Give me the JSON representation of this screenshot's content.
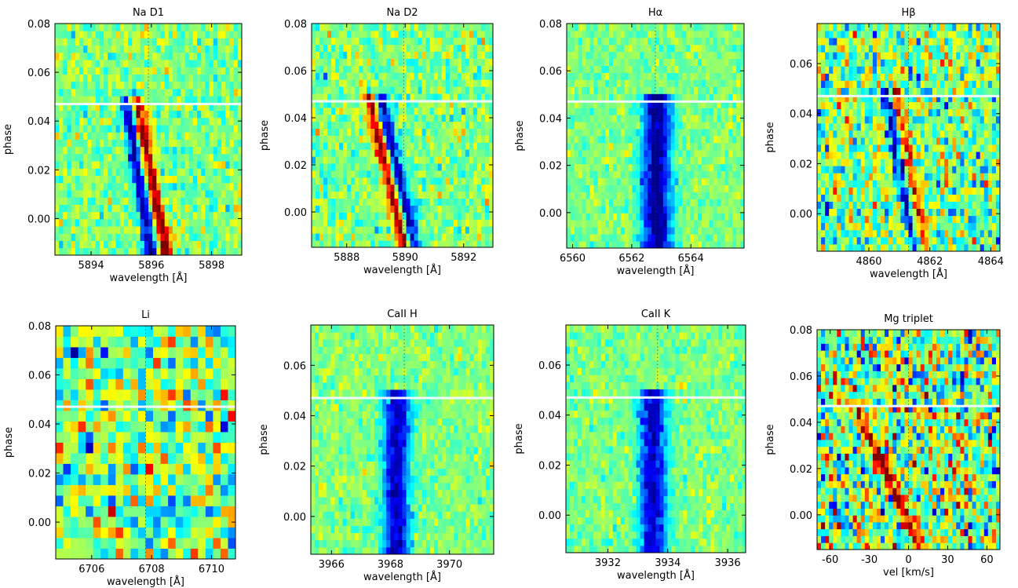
{
  "colormap": [
    "#00008f",
    "#0000ff",
    "#0080ff",
    "#00ffff",
    "#80ff80",
    "#ffff00",
    "#ff8000",
    "#ff0000",
    "#800000"
  ],
  "transit_line_color": "#f0f8ff",
  "chart_data": [
    {
      "type": "heatmap",
      "title": "Na D1",
      "xlabel": "wavelength [Å]",
      "ylabel": "phase",
      "xlim": [
        5892.8,
        5899.0
      ],
      "ylim": [
        -0.015,
        0.08
      ],
      "xticks": [
        5894,
        5896,
        5898
      ],
      "xticklabels": [
        "5894",
        "5896",
        "5898"
      ],
      "yticks": [
        0.0,
        0.02,
        0.04,
        0.06,
        0.08
      ],
      "yticklabels": [
        "0.00",
        "0.02",
        "0.04",
        "0.06",
        "0.08"
      ],
      "transit_end_phase": 0.047,
      "rest_wavelength": 5895.9,
      "features": [
        {
          "kind": "absorption",
          "x_at_phase_min": 5896.0,
          "x_at_phase_transit_end": 5895.2,
          "depth": 1.0
        },
        {
          "kind": "emission",
          "x_at_phase_min": 5896.5,
          "x_at_phase_transit_end": 5895.5,
          "depth": 1.0
        }
      ],
      "noise": 0.3,
      "cols": 46,
      "rows": 32
    },
    {
      "type": "heatmap",
      "title": "Na D2",
      "xlabel": "wavelength [Å]",
      "ylabel": "phase",
      "xlim": [
        5886.8,
        5893.0
      ],
      "ylim": [
        -0.015,
        0.08
      ],
      "xticks": [
        5888,
        5890,
        5892
      ],
      "xticklabels": [
        "5888",
        "5890",
        "5892"
      ],
      "yticks": [
        0.0,
        0.02,
        0.04,
        0.06,
        0.08
      ],
      "yticklabels": [
        "0.00",
        "0.02",
        "0.04",
        "0.06",
        "0.08"
      ],
      "transit_end_phase": 0.047,
      "rest_wavelength": 5889.95,
      "features": [
        {
          "kind": "absorption",
          "x_at_phase_min": 5890.3,
          "x_at_phase_transit_end": 5889.2,
          "depth": 1.0
        },
        {
          "kind": "emission",
          "x_at_phase_min": 5890.0,
          "x_at_phase_transit_end": 5888.8,
          "depth": 1.0
        }
      ],
      "noise": 0.3,
      "cols": 46,
      "rows": 32
    },
    {
      "type": "heatmap",
      "title": "Hα",
      "xlabel": "wavelength [Å]",
      "ylabel": "phase",
      "xlim": [
        6559.8,
        6565.8
      ],
      "ylim": [
        -0.015,
        0.08
      ],
      "xticks": [
        6560,
        6562,
        6564
      ],
      "xticklabels": [
        "6560",
        "6562",
        "6564"
      ],
      "yticks": [
        0.0,
        0.02,
        0.04,
        0.06,
        0.08
      ],
      "yticklabels": [
        "0.00",
        "0.02",
        "0.04",
        "0.06",
        "0.08"
      ],
      "transit_end_phase": 0.047,
      "rest_wavelength": 6562.8,
      "features": [
        {
          "kind": "absorption",
          "x_at_phase_min": 6562.85,
          "x_at_phase_transit_end": 6562.85,
          "depth": 1.0,
          "width": 0.5
        }
      ],
      "noise": 0.2,
      "cols": 46,
      "rows": 32
    },
    {
      "type": "heatmap",
      "title": "Hβ",
      "xlabel": "wavelength [Å]",
      "ylabel": "phase",
      "xlim": [
        4858.3,
        4864.3
      ],
      "ylim": [
        -0.015,
        0.076
      ],
      "xticks": [
        4860,
        4862,
        4864
      ],
      "xticklabels": [
        "4860",
        "4862",
        "4864"
      ],
      "yticks": [
        0.0,
        0.02,
        0.04,
        0.06
      ],
      "yticklabels": [
        "0.00",
        "0.02",
        "0.04",
        "0.06"
      ],
      "transit_end_phase": 0.047,
      "rest_wavelength": 4861.3,
      "features": [
        {
          "kind": "absorption",
          "x_at_phase_min": 4861.6,
          "x_at_phase_transit_end": 4860.6,
          "depth": 0.8
        },
        {
          "kind": "emission",
          "x_at_phase_min": 4861.8,
          "x_at_phase_transit_end": 4860.9,
          "depth": 0.8
        }
      ],
      "noise": 0.55,
      "cols": 46,
      "rows": 32
    },
    {
      "type": "heatmap",
      "title": "Li",
      "xlabel": "wavelength [Å]",
      "ylabel": "phase",
      "xlim": [
        6704.8,
        6710.8
      ],
      "ylim": [
        -0.015,
        0.08
      ],
      "xticks": [
        6706,
        6708,
        6710
      ],
      "xticklabels": [
        "6706",
        "6708",
        "6710"
      ],
      "yticks": [
        0.0,
        0.02,
        0.04,
        0.06,
        0.08
      ],
      "yticklabels": [
        "0.00",
        "0.02",
        "0.04",
        "0.06",
        "0.08"
      ],
      "transit_end_phase": 0.047,
      "rest_wavelength": 6707.8,
      "features": [],
      "noise": 0.6,
      "cols": 24,
      "rows": 22
    },
    {
      "type": "heatmap",
      "title": "CaII H",
      "xlabel": "wavelength [Å]",
      "ylabel": "phase",
      "xlim": [
        3965.3,
        3971.5
      ],
      "ylim": [
        -0.015,
        0.076
      ],
      "xticks": [
        3966,
        3968,
        3970
      ],
      "xticklabels": [
        "3966",
        "3968",
        "3970"
      ],
      "yticks": [
        0.0,
        0.02,
        0.04,
        0.06
      ],
      "yticklabels": [
        "0.00",
        "0.02",
        "0.04",
        "0.06"
      ],
      "transit_end_phase": 0.047,
      "rest_wavelength": 3968.47,
      "features": [
        {
          "kind": "absorption",
          "x_at_phase_min": 3968.2,
          "x_at_phase_transit_end": 3968.2,
          "depth": 0.9,
          "width": 0.45
        }
      ],
      "noise": 0.2,
      "cols": 46,
      "rows": 32
    },
    {
      "type": "heatmap",
      "title": "CaII K",
      "xlabel": "wavelength [Å]",
      "ylabel": "phase",
      "xlim": [
        3930.6,
        3936.6
      ],
      "ylim": [
        -0.015,
        0.076
      ],
      "xticks": [
        3932,
        3934,
        3936
      ],
      "xticklabels": [
        "3932",
        "3934",
        "3936"
      ],
      "yticks": [
        0.0,
        0.02,
        0.04,
        0.06
      ],
      "yticklabels": [
        "0.00",
        "0.02",
        "0.04",
        "0.06"
      ],
      "transit_end_phase": 0.047,
      "rest_wavelength": 3933.66,
      "features": [
        {
          "kind": "absorption",
          "x_at_phase_min": 3933.5,
          "x_at_phase_transit_end": 3933.5,
          "depth": 0.9,
          "width": 0.45
        }
      ],
      "noise": 0.2,
      "cols": 46,
      "rows": 32
    },
    {
      "type": "heatmap",
      "title": "Mg triplet",
      "xlabel": "vel [km/s]",
      "ylabel": "phase",
      "xlim": [
        -70,
        70
      ],
      "ylim": [
        -0.015,
        0.08
      ],
      "xticks": [
        -60,
        -30,
        0,
        30,
        60
      ],
      "xticklabels": [
        "-60",
        "-30",
        "0",
        "30",
        "60"
      ],
      "yticks": [
        0.0,
        0.02,
        0.04,
        0.06,
        0.08
      ],
      "yticklabels": [
        "0.00",
        "0.02",
        "0.04",
        "0.06",
        "0.08"
      ],
      "transit_end_phase": 0.047,
      "rest_wavelength": 0,
      "features": [
        {
          "kind": "emission",
          "x_at_phase_min": 10,
          "x_at_phase_transit_end": -40,
          "depth": 0.9
        }
      ],
      "noise": 0.7,
      "cols": 46,
      "rows": 32
    }
  ]
}
